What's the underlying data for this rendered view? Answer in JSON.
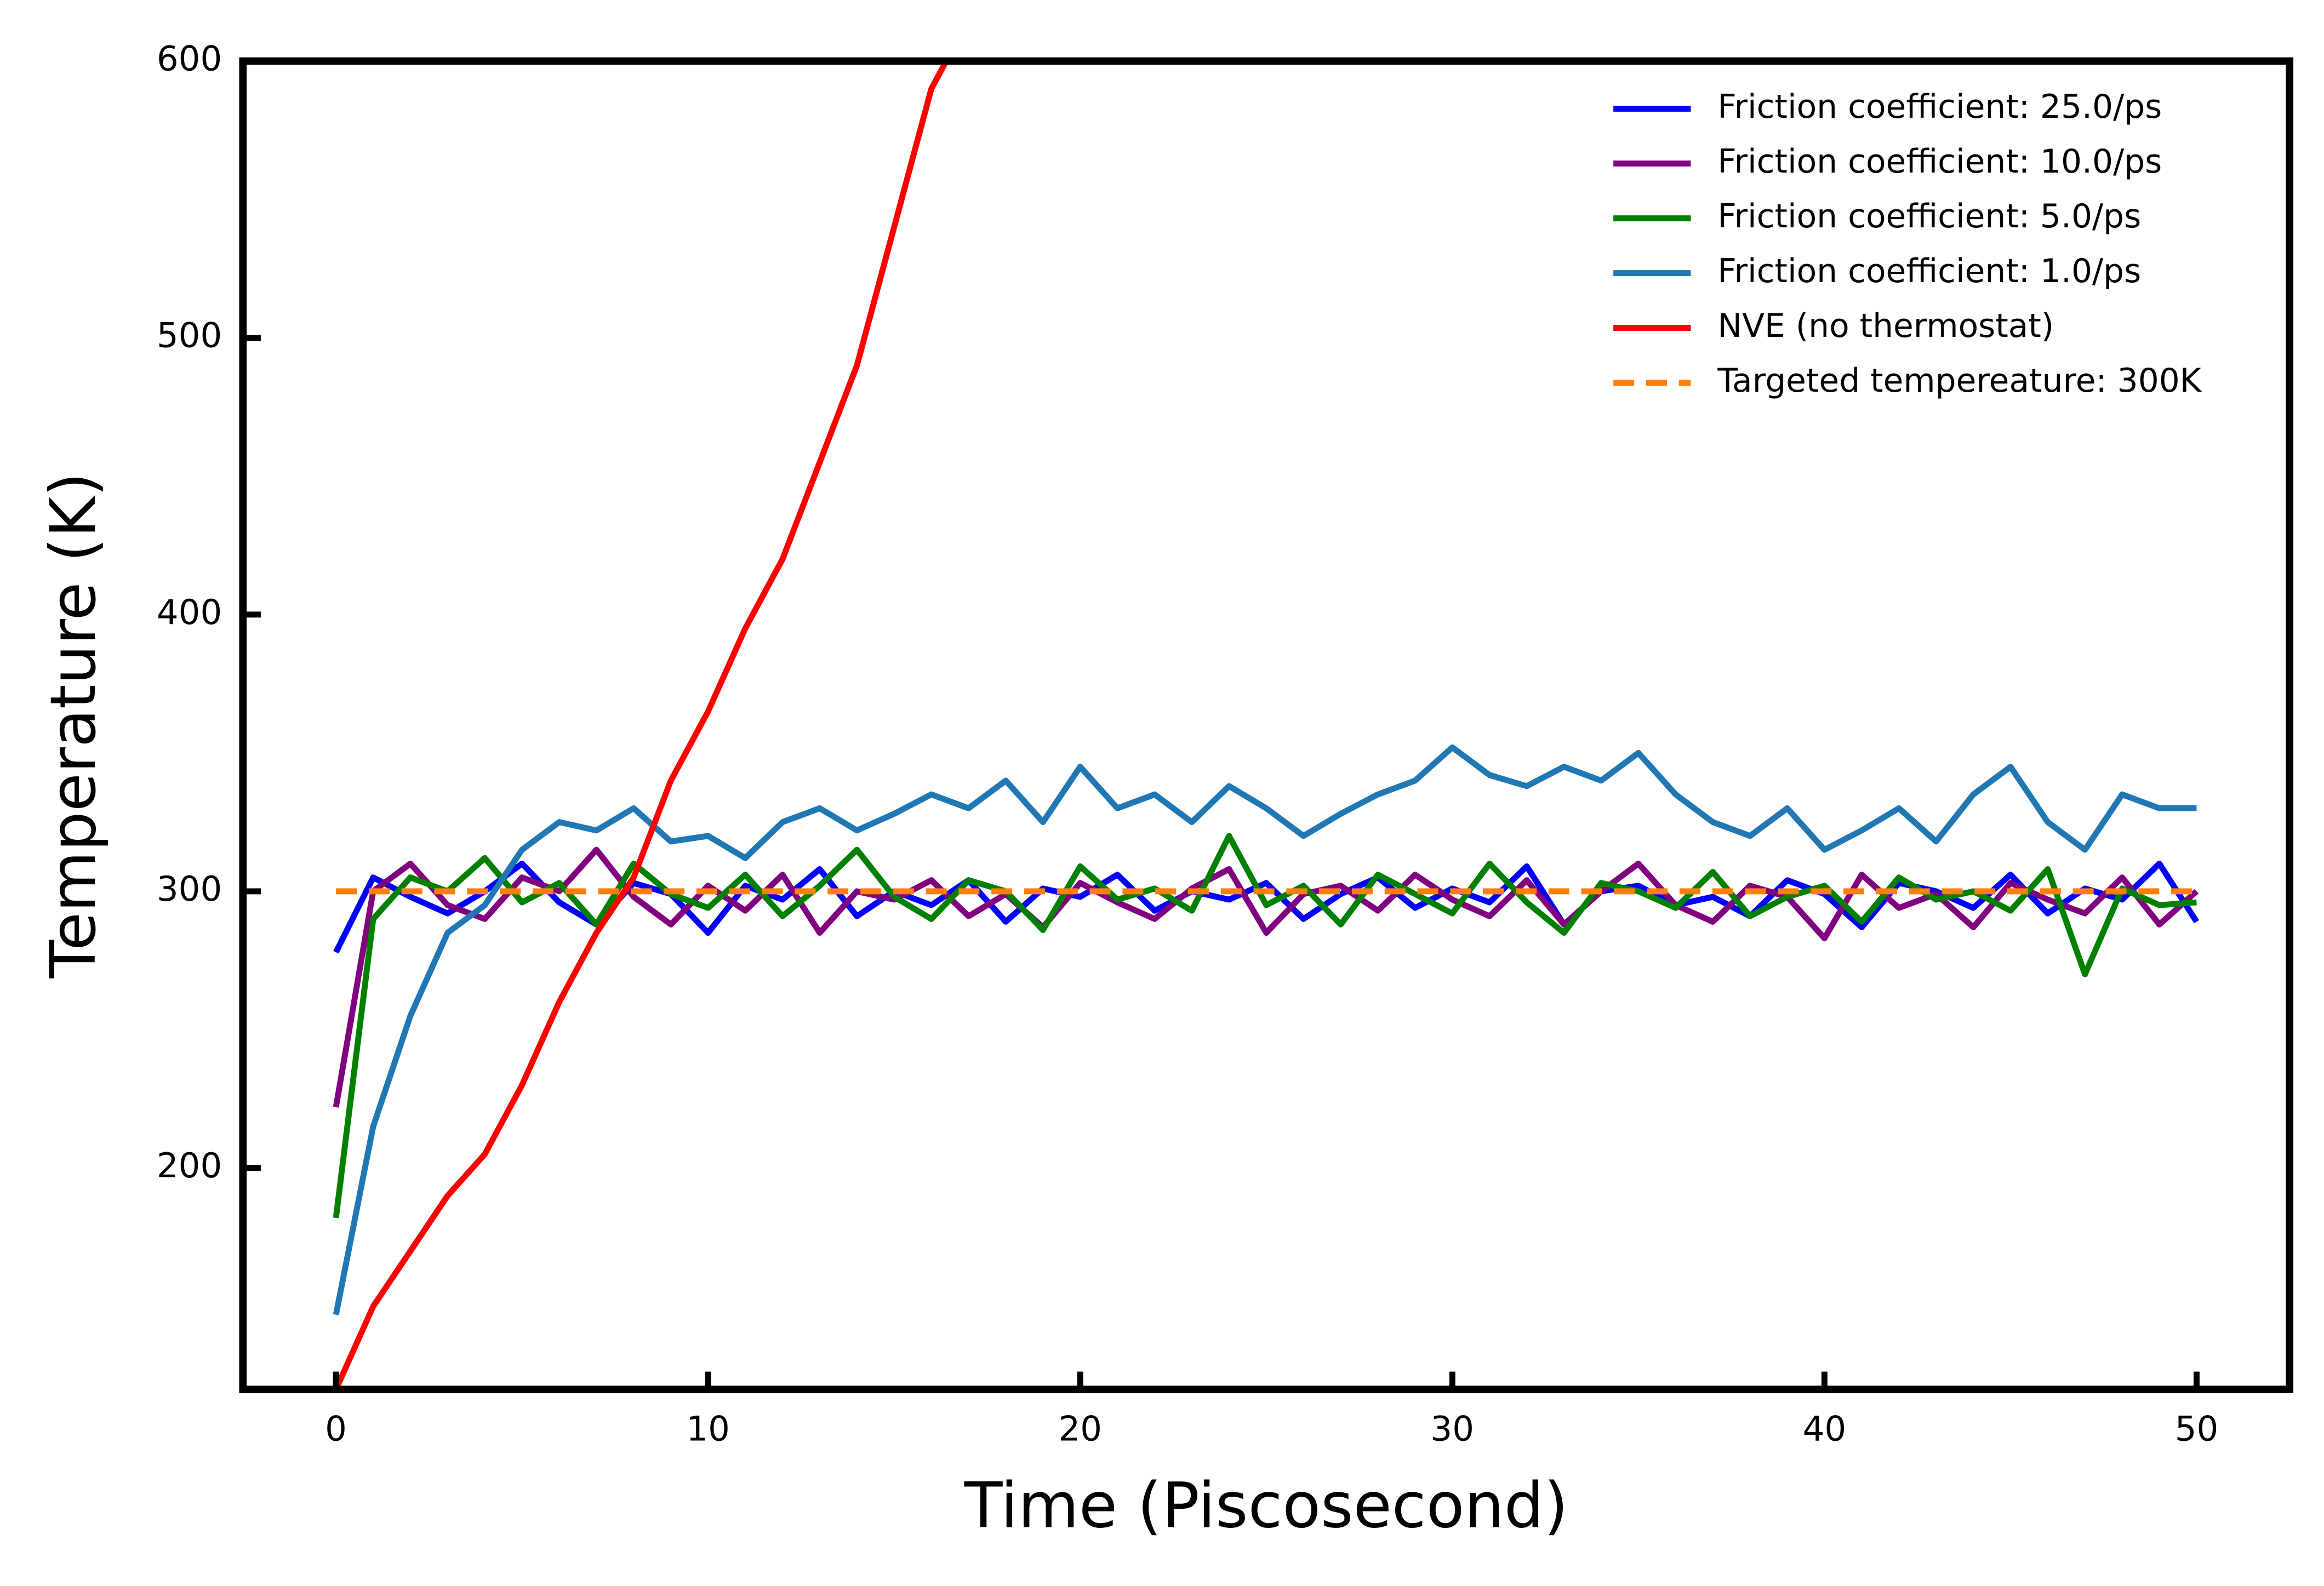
{
  "chart_data": {
    "type": "line",
    "xlabel": "Time (Piscosecond)",
    "ylabel": "Temperature (K)",
    "xlim": [
      -2.5,
      52.5
    ],
    "ylim": [
      120,
      600
    ],
    "xticks": [
      0,
      10,
      20,
      30,
      40,
      50
    ],
    "yticks": [
      200,
      300,
      400,
      500,
      600
    ],
    "legend": "upper right",
    "grid": false,
    "x": [
      0,
      1,
      2,
      3,
      4,
      5,
      6,
      7,
      8,
      9,
      10,
      11,
      12,
      13,
      14,
      15,
      16,
      17,
      18,
      19,
      20,
      21,
      22,
      23,
      24,
      25,
      26,
      27,
      28,
      29,
      30,
      31,
      32,
      33,
      34,
      35,
      36,
      37,
      38,
      39,
      40,
      41,
      42,
      43,
      44,
      45,
      46,
      47,
      48,
      49,
      50
    ],
    "series": [
      {
        "name": "Friction coefficient: 25.0/ps",
        "color": "#0000ff",
        "dash": false,
        "values": [
          278,
          305,
          298,
          292,
          300,
          310,
          296,
          288,
          303,
          299,
          285,
          302,
          297,
          308,
          291,
          300,
          295,
          304,
          289,
          301,
          298,
          306,
          293,
          300,
          297,
          303,
          290,
          299,
          305,
          294,
          301,
          296,
          309,
          288,
          300,
          302,
          295,
          298,
          291,
          304,
          299,
          287,
          303,
          300,
          294,
          306,
          292,
          301,
          297,
          310,
          289
        ]
      },
      {
        "name": "Friction coefficient: 10.0/ps",
        "color": "#800080",
        "dash": false,
        "values": [
          222,
          300,
          310,
          295,
          290,
          305,
          300,
          315,
          298,
          288,
          302,
          293,
          306,
          285,
          300,
          297,
          304,
          291,
          299,
          287,
          303,
          296,
          290,
          301,
          308,
          285,
          299,
          302,
          293,
          306,
          297,
          291,
          304,
          288,
          300,
          310,
          295,
          289,
          302,
          298,
          283,
          306,
          294,
          299,
          287,
          303,
          297,
          292,
          305,
          288,
          300
        ]
      },
      {
        "name": "Friction coefficient: 5.0/ps",
        "color": "#008000",
        "dash": false,
        "values": [
          182,
          290,
          305,
          300,
          312,
          296,
          303,
          288,
          310,
          299,
          294,
          306,
          291,
          302,
          315,
          298,
          290,
          304,
          300,
          286,
          309,
          297,
          301,
          293,
          320,
          295,
          302,
          288,
          306,
          299,
          292,
          310,
          296,
          285,
          303,
          300,
          294,
          307,
          291,
          298,
          302,
          289,
          305,
          297,
          300,
          293,
          308,
          270,
          301,
          295,
          296
        ]
      },
      {
        "name": "Friction coefficient: 1.0/ps",
        "color": "#1f77b4",
        "dash": false,
        "values": [
          147,
          215,
          255,
          285,
          295,
          315,
          325,
          322,
          330,
          318,
          320,
          312,
          325,
          330,
          322,
          328,
          335,
          330,
          340,
          325,
          345,
          330,
          335,
          325,
          338,
          330,
          320,
          328,
          335,
          340,
          352,
          342,
          338,
          345,
          340,
          350,
          335,
          325,
          320,
          330,
          315,
          322,
          330,
          318,
          335,
          345,
          325,
          315,
          335,
          330,
          330
        ]
      },
      {
        "name": "NVE (no thermostat)",
        "color": "#ff0000",
        "dash": false,
        "x": [
          0,
          1,
          2,
          3,
          4,
          5,
          6,
          7,
          8,
          9,
          10,
          11,
          12,
          13,
          14,
          15,
          16,
          16.4
        ],
        "values": [
          120,
          150,
          170,
          190,
          205,
          230,
          260,
          285,
          305,
          340,
          365,
          395,
          420,
          455,
          490,
          540,
          590,
          600
        ]
      },
      {
        "name": "Targeted tempereature: 300K",
        "color": "#ff7f0e",
        "dash": true,
        "x": [
          0,
          50
        ],
        "values": [
          300,
          300
        ]
      }
    ]
  }
}
